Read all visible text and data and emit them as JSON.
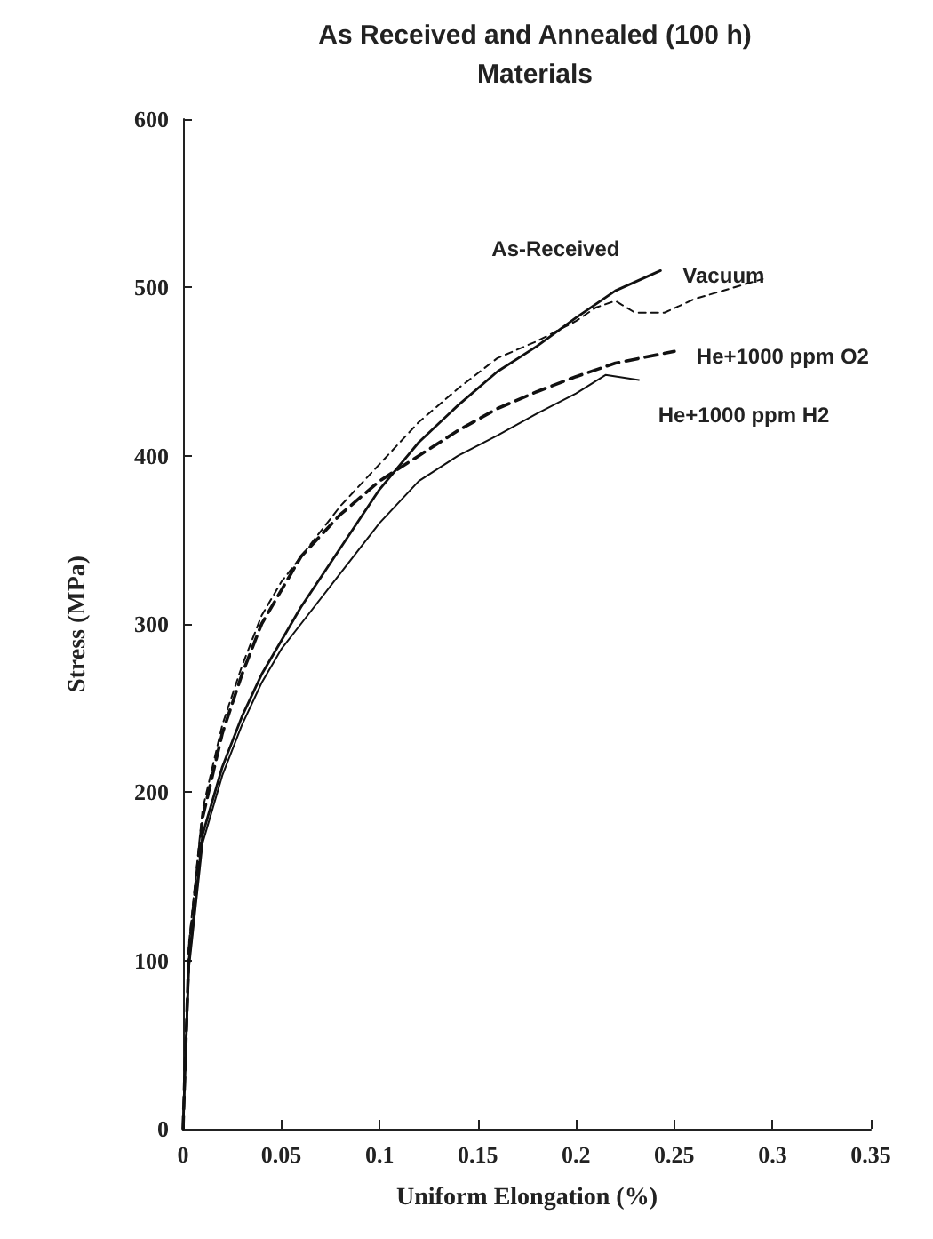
{
  "chart_data": {
    "type": "line",
    "title": "As Received and Annealed (100 h)\nMaterials",
    "xlabel": "Uniform Elongation (%)",
    "ylabel": "Stress (MPa)",
    "xlim": [
      0,
      0.35
    ],
    "xticks": [
      0,
      0.05,
      0.1,
      0.15,
      0.2,
      0.25,
      0.3,
      0.35
    ],
    "ylim": [
      0,
      600
    ],
    "yticks": [
      0,
      100,
      200,
      300,
      400,
      500,
      600
    ],
    "grid": false,
    "marker": "none",
    "series": [
      {
        "name": "As-Received",
        "color": "#111111",
        "line_style": "solid",
        "x": [
          0,
          0.003,
          0.01,
          0.02,
          0.03,
          0.04,
          0.05,
          0.06,
          0.08,
          0.1,
          0.12,
          0.14,
          0.16,
          0.18,
          0.2,
          0.22,
          0.243
        ],
        "values": [
          0,
          100,
          175,
          215,
          245,
          270,
          290,
          310,
          345,
          380,
          408,
          430,
          450,
          465,
          482,
          498,
          510
        ]
      },
      {
        "name": "Vacuum",
        "color": "#111111",
        "line_style": "dashed",
        "x": [
          0,
          0.003,
          0.01,
          0.02,
          0.03,
          0.04,
          0.05,
          0.06,
          0.08,
          0.1,
          0.12,
          0.14,
          0.16,
          0.18,
          0.2,
          0.21,
          0.22,
          0.23,
          0.245,
          0.26,
          0.295
        ],
        "values": [
          0,
          110,
          190,
          240,
          275,
          305,
          325,
          340,
          370,
          395,
          420,
          440,
          458,
          468,
          480,
          488,
          492,
          485,
          485,
          493,
          505
        ]
      },
      {
        "name": "He+1000 ppm O2",
        "color": "#111111",
        "line_style": "dashed",
        "x": [
          0,
          0.003,
          0.01,
          0.02,
          0.03,
          0.04,
          0.05,
          0.06,
          0.08,
          0.1,
          0.12,
          0.14,
          0.16,
          0.18,
          0.2,
          0.22,
          0.25
        ],
        "values": [
          0,
          105,
          185,
          235,
          270,
          300,
          320,
          340,
          365,
          385,
          400,
          415,
          428,
          438,
          447,
          455,
          462
        ]
      },
      {
        "name": "He+1000 ppm H2",
        "color": "#111111",
        "line_style": "solid",
        "x": [
          0,
          0.003,
          0.01,
          0.02,
          0.03,
          0.04,
          0.05,
          0.06,
          0.08,
          0.1,
          0.12,
          0.14,
          0.16,
          0.18,
          0.2,
          0.215,
          0.232
        ],
        "values": [
          0,
          95,
          170,
          210,
          240,
          265,
          285,
          300,
          330,
          360,
          385,
          400,
          412,
          425,
          437,
          448,
          445
        ]
      }
    ]
  }
}
